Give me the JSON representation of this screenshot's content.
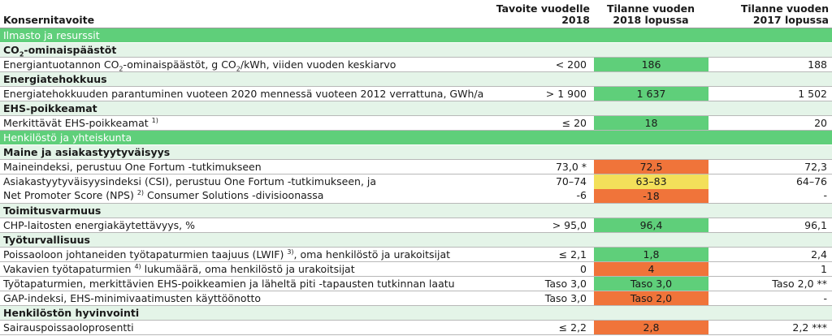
{
  "headers": {
    "goal": "Konsernitavoite",
    "target": "Tavoite vuodelle 2018",
    "s2018": "Tilanne vuoden 2018 lopussa",
    "s2017": "Tilanne vuoden 2017 lopussa"
  },
  "colors": {
    "green": "#5fcf7a",
    "red": "#f0743a",
    "yellow": "#f3e05a",
    "subhead_bg": "#e4f4e8"
  },
  "sections": {
    "climate": "Ilmasto ja resurssit",
    "people": "Henkilöstö ja yhteiskunta"
  },
  "subheads": {
    "co2_pre": "CO",
    "co2_sub": "2",
    "co2_post": "-ominaispäästöt",
    "energy": "Energiatehokkuus",
    "ehs": "EHS-poikkeamat",
    "brand": "Maine ja asiakastyytyväisyys",
    "supply": "Toimitusvarmuus",
    "safety": "Työturvallisuus",
    "wellbeing": "Henkilöstön hyvinvointi"
  },
  "rows": {
    "co2": {
      "l1": "Energiantuotannon CO",
      "s1": "2",
      "l2": "-ominaispäästöt, g CO",
      "s2": "2",
      "l3": "/kWh, viiden vuoden keskiarvo",
      "target": "< 200",
      "v2018": "186",
      "v2017": "188"
    },
    "energy": {
      "label": "Energiatehokkuuden parantuminen vuoteen 2020 mennessä vuoteen 2012 verrattuna, GWh/a",
      "target": "> 1 900",
      "v2018": "1 637",
      "v2017": "1 502"
    },
    "ehs": {
      "label": "Merkittävät EHS-poikkeamat ",
      "sup": "1)",
      "target": "≤ 20",
      "v2018": "18",
      "v2017": "20"
    },
    "brand": {
      "label": "Maineindeksi, perustuu One Fortum -tutkimukseen",
      "target": "73,0 *",
      "v2018": "72,5",
      "v2017": "72,3"
    },
    "csi": {
      "label1": "Asiakastyytyväisyysindeksi (CSI), perustuu One Fortum -tutkimukseen, ja",
      "label2a": "Net Promoter Score (NPS) ",
      "sup": "2)",
      "label2b": " Consumer Solutions -divisioonassa",
      "target1": "70–74",
      "target2": "-6",
      "v2018a": "63–83",
      "v2018b": "-18",
      "v2017a": "64–76",
      "v2017b": "-"
    },
    "chp": {
      "label": "CHP-laitosten energiakäytettävyys, %",
      "target": "> 95,0",
      "v2018": "96,4",
      "v2017": "96,1"
    },
    "lwif": {
      "label": "Poissaoloon johtaneiden työtapaturmien taajuus (LWIF) ",
      "sup": "3)",
      "label2": ", oma henkilöstö ja urakoitsijat",
      "target": "≤ 2,1",
      "v2018": "1,8",
      "v2017": "2,4"
    },
    "severe": {
      "label": "Vakavien työtapaturmien ",
      "sup": "4)",
      "label2": " lukumäärä, oma henkilöstö ja urakoitsijat",
      "target": "0",
      "v2018": "4",
      "v2017": "1"
    },
    "quality": {
      "label": "Työtapaturmien, merkittävien EHS-poikkeamien ja läheltä piti -tapausten tutkinnan laatu",
      "target": "Taso 3,0",
      "v2018": "Taso 3,0",
      "v2017": "Taso 2,0 **"
    },
    "gap": {
      "label": "GAP-indeksi, EHS-minimivaatimusten käyttöönotto",
      "target": "Taso 3,0",
      "v2018": "Taso 2,0",
      "v2017": "-"
    },
    "sick": {
      "label": "Sairauspoissaoloprosentti",
      "target": "≤ 2,2",
      "v2018": "2,8",
      "v2017": "2,2 ***"
    }
  }
}
